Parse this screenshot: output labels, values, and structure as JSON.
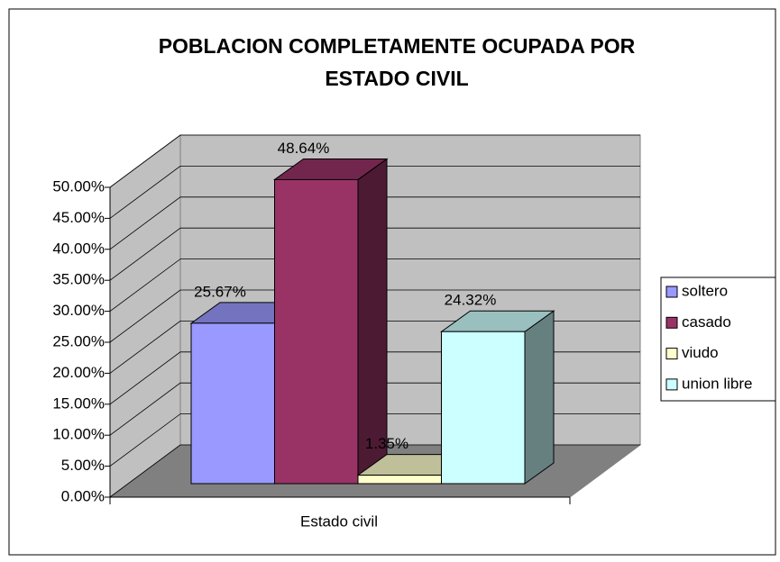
{
  "chart_data": {
    "type": "bar3d",
    "title": [
      "POBLACION COMPLETAMENTE OCUPADA POR",
      "ESTADO CIVIL"
    ],
    "categories": [
      "Estado civil"
    ],
    "series": [
      {
        "name": "soltero",
        "color": "#9999ff",
        "values": [
          25.67
        ],
        "value_labels": [
          "25.67%"
        ]
      },
      {
        "name": "casado",
        "color": "#993366",
        "values": [
          48.64
        ],
        "value_labels": [
          "48.64%"
        ]
      },
      {
        "name": "viudo",
        "color": "#ffffcc",
        "values": [
          1.35
        ],
        "value_labels": [
          "1.35%"
        ]
      },
      {
        "name": "union libre",
        "color": "#ccffff",
        "values": [
          24.32
        ],
        "value_labels": [
          "24.32%"
        ]
      }
    ],
    "ylim": [
      0,
      50
    ],
    "yticks": [
      {
        "value": 0,
        "label": "0.00%"
      },
      {
        "value": 5,
        "label": "5.00%"
      },
      {
        "value": 10,
        "label": "10.00%"
      },
      {
        "value": 15,
        "label": "15.00%"
      },
      {
        "value": 20,
        "label": "20.00%"
      },
      {
        "value": 25,
        "label": "25.00%"
      },
      {
        "value": 30,
        "label": "30.00%"
      },
      {
        "value": 35,
        "label": "35.00%"
      },
      {
        "value": 40,
        "label": "40.00%"
      },
      {
        "value": 45,
        "label": "45.00%"
      },
      {
        "value": 50,
        "label": "50.00%"
      }
    ],
    "grid": true,
    "legend": "right"
  }
}
